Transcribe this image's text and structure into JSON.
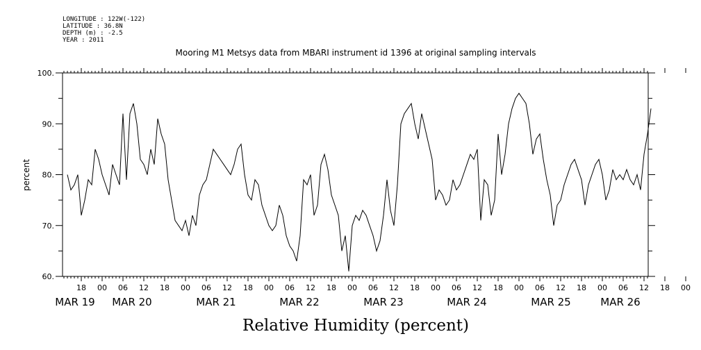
{
  "metadata": {
    "longitude": "LONGITUDE : 122W(-122)",
    "latitude": "LATITUDE : 36.8N",
    "depth": "DEPTH (m) : -2.5",
    "year": "YEAR : 2011"
  },
  "chart_data": {
    "type": "line",
    "title": "Mooring M1 Metsys data from MBARI instrument id 1396 at original sampling intervals",
    "xlabel": "Relative Humidity (percent)",
    "ylabel": "percent",
    "ylim": [
      60,
      100
    ],
    "yticks": [
      "60.",
      "70.",
      "80.",
      "90.",
      "100."
    ],
    "xlim_hours": [
      0,
      168
    ],
    "hour_ticks": [
      "18",
      "00",
      "06",
      "12",
      "18",
      "00",
      "06",
      "12",
      "18",
      "00",
      "06",
      "12",
      "18",
      "00",
      "06",
      "12",
      "18",
      "00",
      "06",
      "12",
      "18",
      "00",
      "06",
      "12",
      "18",
      "00",
      "06",
      "12",
      "18",
      "00",
      "06",
      "12"
    ],
    "day_labels": [
      "MAR 19",
      "MAR 20",
      "MAR 21",
      "MAR 22",
      "MAR 23",
      "MAR 24",
      "MAR 25",
      "MAR 26"
    ],
    "grid": false,
    "series": [
      {
        "color": "#000000",
        "x_hours": [
          0,
          1,
          2,
          3,
          4,
          5,
          6,
          7,
          8,
          9,
          10,
          11,
          12,
          13,
          14,
          15,
          16,
          17,
          18,
          19,
          20,
          21,
          22,
          23,
          24,
          25,
          26,
          27,
          28,
          29,
          30,
          31,
          32,
          33,
          34,
          35,
          36,
          37,
          38,
          39,
          40,
          41,
          42,
          43,
          44,
          45,
          46,
          47,
          48,
          49,
          50,
          51,
          52,
          53,
          54,
          55,
          56,
          57,
          58,
          59,
          60,
          61,
          62,
          63,
          64,
          65,
          66,
          67,
          68,
          69,
          70,
          71,
          72,
          73,
          74,
          75,
          76,
          77,
          78,
          79,
          80,
          81,
          82,
          83,
          84,
          85,
          86,
          87,
          88,
          89,
          90,
          91,
          92,
          93,
          94,
          95,
          96,
          97,
          98,
          99,
          100,
          101,
          102,
          103,
          104,
          105,
          106,
          107,
          108,
          109,
          110,
          111,
          112,
          113,
          114,
          115,
          116,
          117,
          118,
          119,
          120,
          121,
          122,
          123,
          124,
          125,
          126,
          127,
          128,
          129,
          130,
          131,
          132,
          133,
          134,
          135,
          136,
          137,
          138,
          139,
          140,
          141,
          142,
          143,
          144,
          145,
          146,
          147,
          148,
          149,
          150,
          151,
          152,
          153,
          154,
          155,
          156,
          157,
          158,
          159,
          160,
          161,
          162,
          163,
          164,
          165,
          166,
          167,
          168
        ],
        "values": [
          80,
          77,
          78,
          80,
          72,
          75,
          79,
          78,
          85,
          83,
          80,
          78,
          76,
          82,
          80,
          78,
          92,
          79,
          92,
          94,
          90,
          83,
          82,
          80,
          85,
          82,
          91,
          88,
          86,
          79,
          75,
          71,
          70,
          69,
          71,
          68,
          72,
          70,
          76,
          78,
          79,
          82,
          85,
          84,
          83,
          82,
          81,
          80,
          82,
          85,
          86,
          80,
          76,
          75,
          79,
          78,
          74,
          72,
          70,
          69,
          70,
          74,
          72,
          68,
          66,
          65,
          63,
          68,
          79,
          78,
          80,
          72,
          74,
          82,
          84,
          81,
          76,
          74,
          72,
          65,
          68,
          61,
          70,
          72,
          71,
          73,
          72,
          70,
          68,
          65,
          67,
          72,
          79,
          73,
          70,
          78,
          90,
          92,
          93,
          94,
          90,
          87,
          92,
          89,
          86,
          83,
          75,
          77,
          76,
          74,
          75,
          79,
          77,
          78,
          80,
          82,
          84,
          83,
          85,
          71,
          79,
          78,
          72,
          75,
          88,
          80,
          84,
          90,
          93,
          95,
          96,
          95,
          94,
          90,
          84,
          87,
          88,
          83,
          79,
          76,
          70,
          74,
          75,
          78,
          80,
          82,
          83,
          81,
          79,
          74,
          78,
          80,
          82,
          83,
          80,
          75,
          77,
          81,
          79,
          80,
          79,
          81,
          79,
          78,
          80,
          77,
          84,
          88,
          93
        ]
      }
    ]
  }
}
